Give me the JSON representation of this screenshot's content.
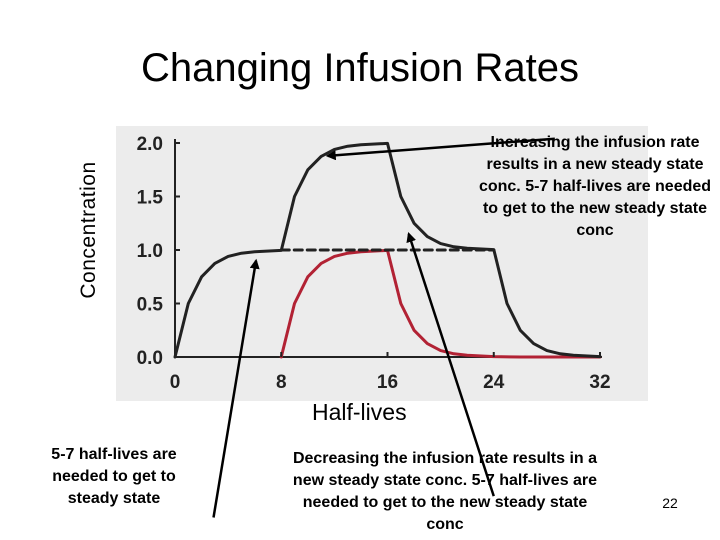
{
  "slide": {
    "title": "Changing Infusion Rates",
    "page_number": "22"
  },
  "notes": {
    "top_right": "Increasing the infusion rate results in a new steady state conc. 5-7 half-lives are needed to get to the new steady state conc",
    "bottom_left": "5-7 half-lives are needed to get to steady state",
    "bottom_center": "Decreasing the infusion rate results in a new steady state conc. 5-7 half-lives are needed to get to the new steady state conc"
  },
  "colors": {
    "panel_background": "#ececec",
    "black_curve": "#222222",
    "red_curve": "#b22234",
    "arrow": "#000000"
  },
  "chart_data": {
    "type": "line",
    "title": "",
    "xlabel": "Half-lives",
    "ylabel": "Concentration",
    "xlim": [
      0,
      32
    ],
    "ylim": [
      0,
      2.0
    ],
    "xticks": [
      "0",
      "8",
      "16",
      "24",
      "32"
    ],
    "yticks": [
      "0.0",
      "0.5",
      "1.0",
      "1.5",
      "2.0"
    ],
    "grid": false,
    "legend": "none",
    "series": [
      {
        "color": "#222222",
        "style": "solid",
        "points": [
          [
            0,
            0
          ],
          [
            1,
            0.5
          ],
          [
            2,
            0.75
          ],
          [
            3,
            0.875
          ],
          [
            4,
            0.94
          ],
          [
            5,
            0.97
          ],
          [
            6,
            0.984
          ],
          [
            8,
            0.996
          ],
          [
            9,
            1.5
          ],
          [
            10,
            1.75
          ],
          [
            11,
            1.875
          ],
          [
            12,
            1.94
          ],
          [
            13,
            1.97
          ],
          [
            14,
            1.984
          ],
          [
            16,
            1.996
          ],
          [
            17,
            1.5
          ],
          [
            18,
            1.25
          ],
          [
            19,
            1.125
          ],
          [
            20,
            1.06
          ],
          [
            21,
            1.03
          ],
          [
            22,
            1.016
          ],
          [
            24,
            1.004
          ],
          [
            25,
            0.5
          ],
          [
            26,
            0.25
          ],
          [
            27,
            0.125
          ],
          [
            28,
            0.06
          ],
          [
            29,
            0.03
          ],
          [
            30,
            0.016
          ],
          [
            32,
            0.004
          ]
        ]
      },
      {
        "color": "#222222",
        "style": "dashed",
        "points": [
          [
            8,
            1.0
          ],
          [
            24,
            1.0
          ]
        ]
      },
      {
        "color": "#b22234",
        "style": "solid",
        "points": [
          [
            8,
            0
          ],
          [
            9,
            0.5
          ],
          [
            10,
            0.75
          ],
          [
            11,
            0.875
          ],
          [
            12,
            0.94
          ],
          [
            13,
            0.97
          ],
          [
            14,
            0.984
          ],
          [
            16,
            0.996
          ],
          [
            17,
            0.5
          ],
          [
            18,
            0.25
          ],
          [
            19,
            0.125
          ],
          [
            20,
            0.06
          ],
          [
            21,
            0.03
          ],
          [
            22,
            0.016
          ],
          [
            24,
            0.004
          ],
          [
            26,
            0.0
          ],
          [
            32,
            0.0
          ]
        ]
      }
    ],
    "annotations": [
      {
        "from": [
          28.6,
          2.04
        ],
        "to": [
          11.5,
          1.88
        ]
      },
      {
        "from": [
          24.0,
          -1.3
        ],
        "to": [
          17.6,
          1.15
        ]
      },
      {
        "from": [
          2.9,
          -1.5
        ],
        "to": [
          6.1,
          0.9
        ]
      }
    ]
  }
}
